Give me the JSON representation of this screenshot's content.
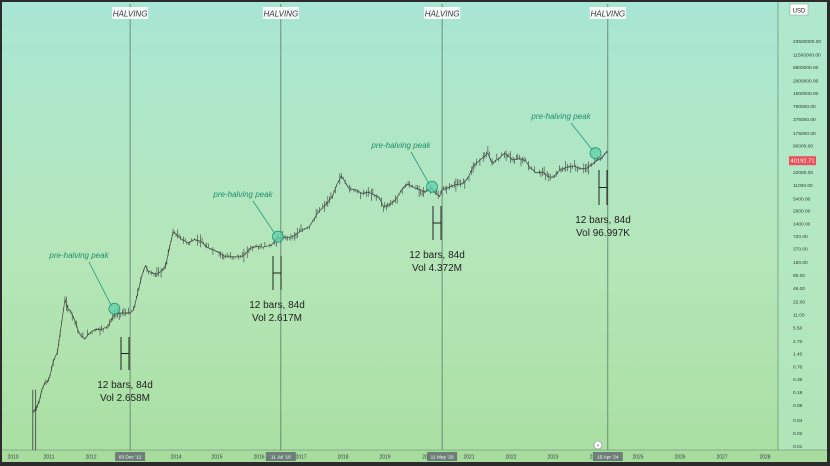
{
  "chart_data": {
    "type": "line",
    "currency_label": "USD",
    "scale": "log",
    "grid": false,
    "x_ticks": [
      "2010",
      "2011",
      "2012",
      "2014",
      "2015",
      "2016",
      "2017",
      "2018",
      "2019",
      "2021",
      "2022",
      "2023",
      "2025",
      "2026",
      "2027",
      "2028"
    ],
    "date_badges": [
      "03 Dec '12",
      "11 Jul '16",
      "11 May '20",
      "15 Apr '24"
    ],
    "y_ticks": [
      0.01,
      0.02,
      0.04,
      0.09,
      0.18,
      0.36,
      0.7,
      1.4,
      2.7,
      5.5,
      11,
      22,
      46,
      90,
      180,
      370,
      720,
      1400,
      2800,
      5400,
      11000,
      22000,
      46000,
      90000,
      175000,
      375000,
      750000,
      1500000,
      2900000,
      5900000,
      11500000,
      23500000
    ],
    "y_tick_labels": [
      "0.01",
      "0.02",
      "0.04",
      "0.09",
      "0.18",
      "0.36",
      "0.70",
      "1.40",
      "2.70",
      "5.50",
      "11.00",
      "22.00",
      "46.00",
      "90.00",
      "180.00",
      "370.00",
      "720.00",
      "1400.00",
      "2800.00",
      "5400.00",
      "11000.00",
      "22000.00",
      "46000.00",
      "90000.00",
      "175000.00",
      "375000.00",
      "750000.00",
      "1500000.00",
      "2900000.00",
      "5900000.00",
      "11500000.00",
      "23500000.00"
    ],
    "current_price": "40192.71",
    "halvings": [
      {
        "label": "HALVING",
        "year": 2012.92
      },
      {
        "label": "HALVING",
        "year": 2016.52
      },
      {
        "label": "HALVING",
        "year": 2020.36
      },
      {
        "label": "HALVING",
        "year": 2024.29
      }
    ],
    "peaks": [
      {
        "label": "pre-halving peak",
        "year": 2012.55,
        "price": 15
      },
      {
        "label": "pre-halving peak",
        "year": 2016.45,
        "price": 700
      },
      {
        "label": "pre-halving peak",
        "year": 2020.12,
        "price": 10000
      },
      {
        "label": "pre-halving peak",
        "year": 2024.0,
        "price": 60000
      }
    ],
    "bar_stats": [
      {
        "bars": "12 bars, 84d",
        "vol": "Vol 2.658M"
      },
      {
        "bars": "12 bars, 84d",
        "vol": "Vol 2.617M"
      },
      {
        "bars": "12 bars, 84d",
        "vol": "Vol 4.372M"
      },
      {
        "bars": "12 bars, 84d",
        "vol": "Vol 96.997K"
      }
    ],
    "series": [
      {
        "x": [
          2010.55,
          2010.62,
          2010.68,
          2010.72,
          2010.8,
          2010.88,
          2010.95,
          2011.02,
          2011.1,
          2011.2,
          2011.3,
          2011.38,
          2011.45,
          2011.52,
          2011.62,
          2011.72,
          2011.85,
          2011.95,
          2012.1,
          2012.25,
          2012.4,
          2012.55,
          2012.7,
          2012.85,
          2012.92,
          2013.0,
          2013.1,
          2013.2,
          2013.28,
          2013.35,
          2013.45,
          2013.55,
          2013.65,
          2013.75,
          2013.85,
          2013.93,
          2014.0,
          2014.15,
          2014.3,
          2014.45,
          2014.6,
          2014.75,
          2014.9,
          2015.05,
          2015.2,
          2015.4,
          2015.6,
          2015.8,
          2015.95,
          2016.1,
          2016.3,
          2016.45,
          2016.52,
          2016.6,
          2016.8,
          2017.0,
          2017.2,
          2017.4,
          2017.6,
          2017.75,
          2017.85,
          2017.96,
          2018.05,
          2018.15,
          2018.3,
          2018.45,
          2018.6,
          2018.75,
          2018.87,
          2018.96,
          2019.1,
          2019.25,
          2019.45,
          2019.55,
          2019.7,
          2019.85,
          2019.95,
          2020.12,
          2020.2,
          2020.3,
          2020.36,
          2020.5,
          2020.65,
          2020.8,
          2020.9,
          2021.0,
          2021.1,
          2021.3,
          2021.45,
          2021.55,
          2021.7,
          2021.85,
          2021.95,
          2022.05,
          2022.2,
          2022.35,
          2022.45,
          2022.6,
          2022.75,
          2022.9,
          2023.0,
          2023.15,
          2023.3,
          2023.5,
          2023.65,
          2023.8,
          2023.95,
          2024.05,
          2024.15,
          2024.22,
          2024.29
        ],
        "y": [
          0.06,
          0.07,
          0.09,
          0.1,
          0.2,
          0.28,
          0.3,
          0.4,
          0.9,
          1.5,
          7,
          25,
          15,
          13,
          8,
          4,
          3,
          4,
          5,
          5,
          6,
          11,
          12,
          12,
          12,
          14,
          35,
          90,
          150,
          110,
          100,
          95,
          110,
          140,
          400,
          900,
          800,
          600,
          500,
          600,
          550,
          400,
          350,
          300,
          240,
          240,
          240,
          380,
          420,
          400,
          450,
          650,
          650,
          660,
          700,
          950,
          1200,
          2500,
          4000,
          6000,
          11000,
          18000,
          13000,
          9000,
          8500,
          7000,
          7500,
          6500,
          5500,
          3500,
          3800,
          5000,
          10000,
          11500,
          9500,
          8500,
          7500,
          9500,
          7000,
          6000,
          8500,
          9500,
          11000,
          11500,
          13000,
          18000,
          30000,
          45000,
          60000,
          35000,
          45000,
          60000,
          50000,
          42000,
          45000,
          40000,
          28000,
          21000,
          22000,
          17000,
          16500,
          24000,
          28000,
          30000,
          26000,
          27000,
          35000,
          42000,
          46000,
          60000,
          65000
        ]
      }
    ]
  }
}
